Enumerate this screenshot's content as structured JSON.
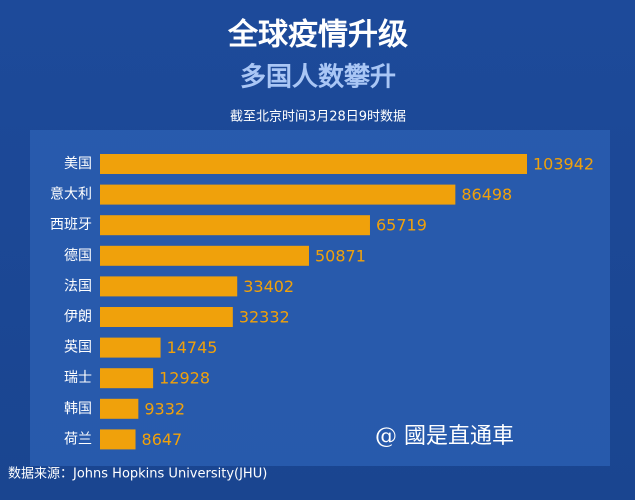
{
  "chart_data": {
    "type": "bar",
    "orientation": "horizontal",
    "title": "全球疫情升级",
    "subtitle": "多国人数攀升",
    "note": "截至北京时间3月28日9时数据",
    "source": "数据来源：Johns Hopkins University(JHU)",
    "watermark": "@ 國是直通車",
    "categories": [
      "美国",
      "意大利",
      "西班牙",
      "德国",
      "法国",
      "伊朗",
      "英国",
      "瑞士",
      "韩国",
      "荷兰"
    ],
    "values": [
      103942,
      86498,
      65719,
      50871,
      33402,
      32332,
      14745,
      12928,
      9332,
      8647
    ],
    "color": "#f0a10b"
  }
}
